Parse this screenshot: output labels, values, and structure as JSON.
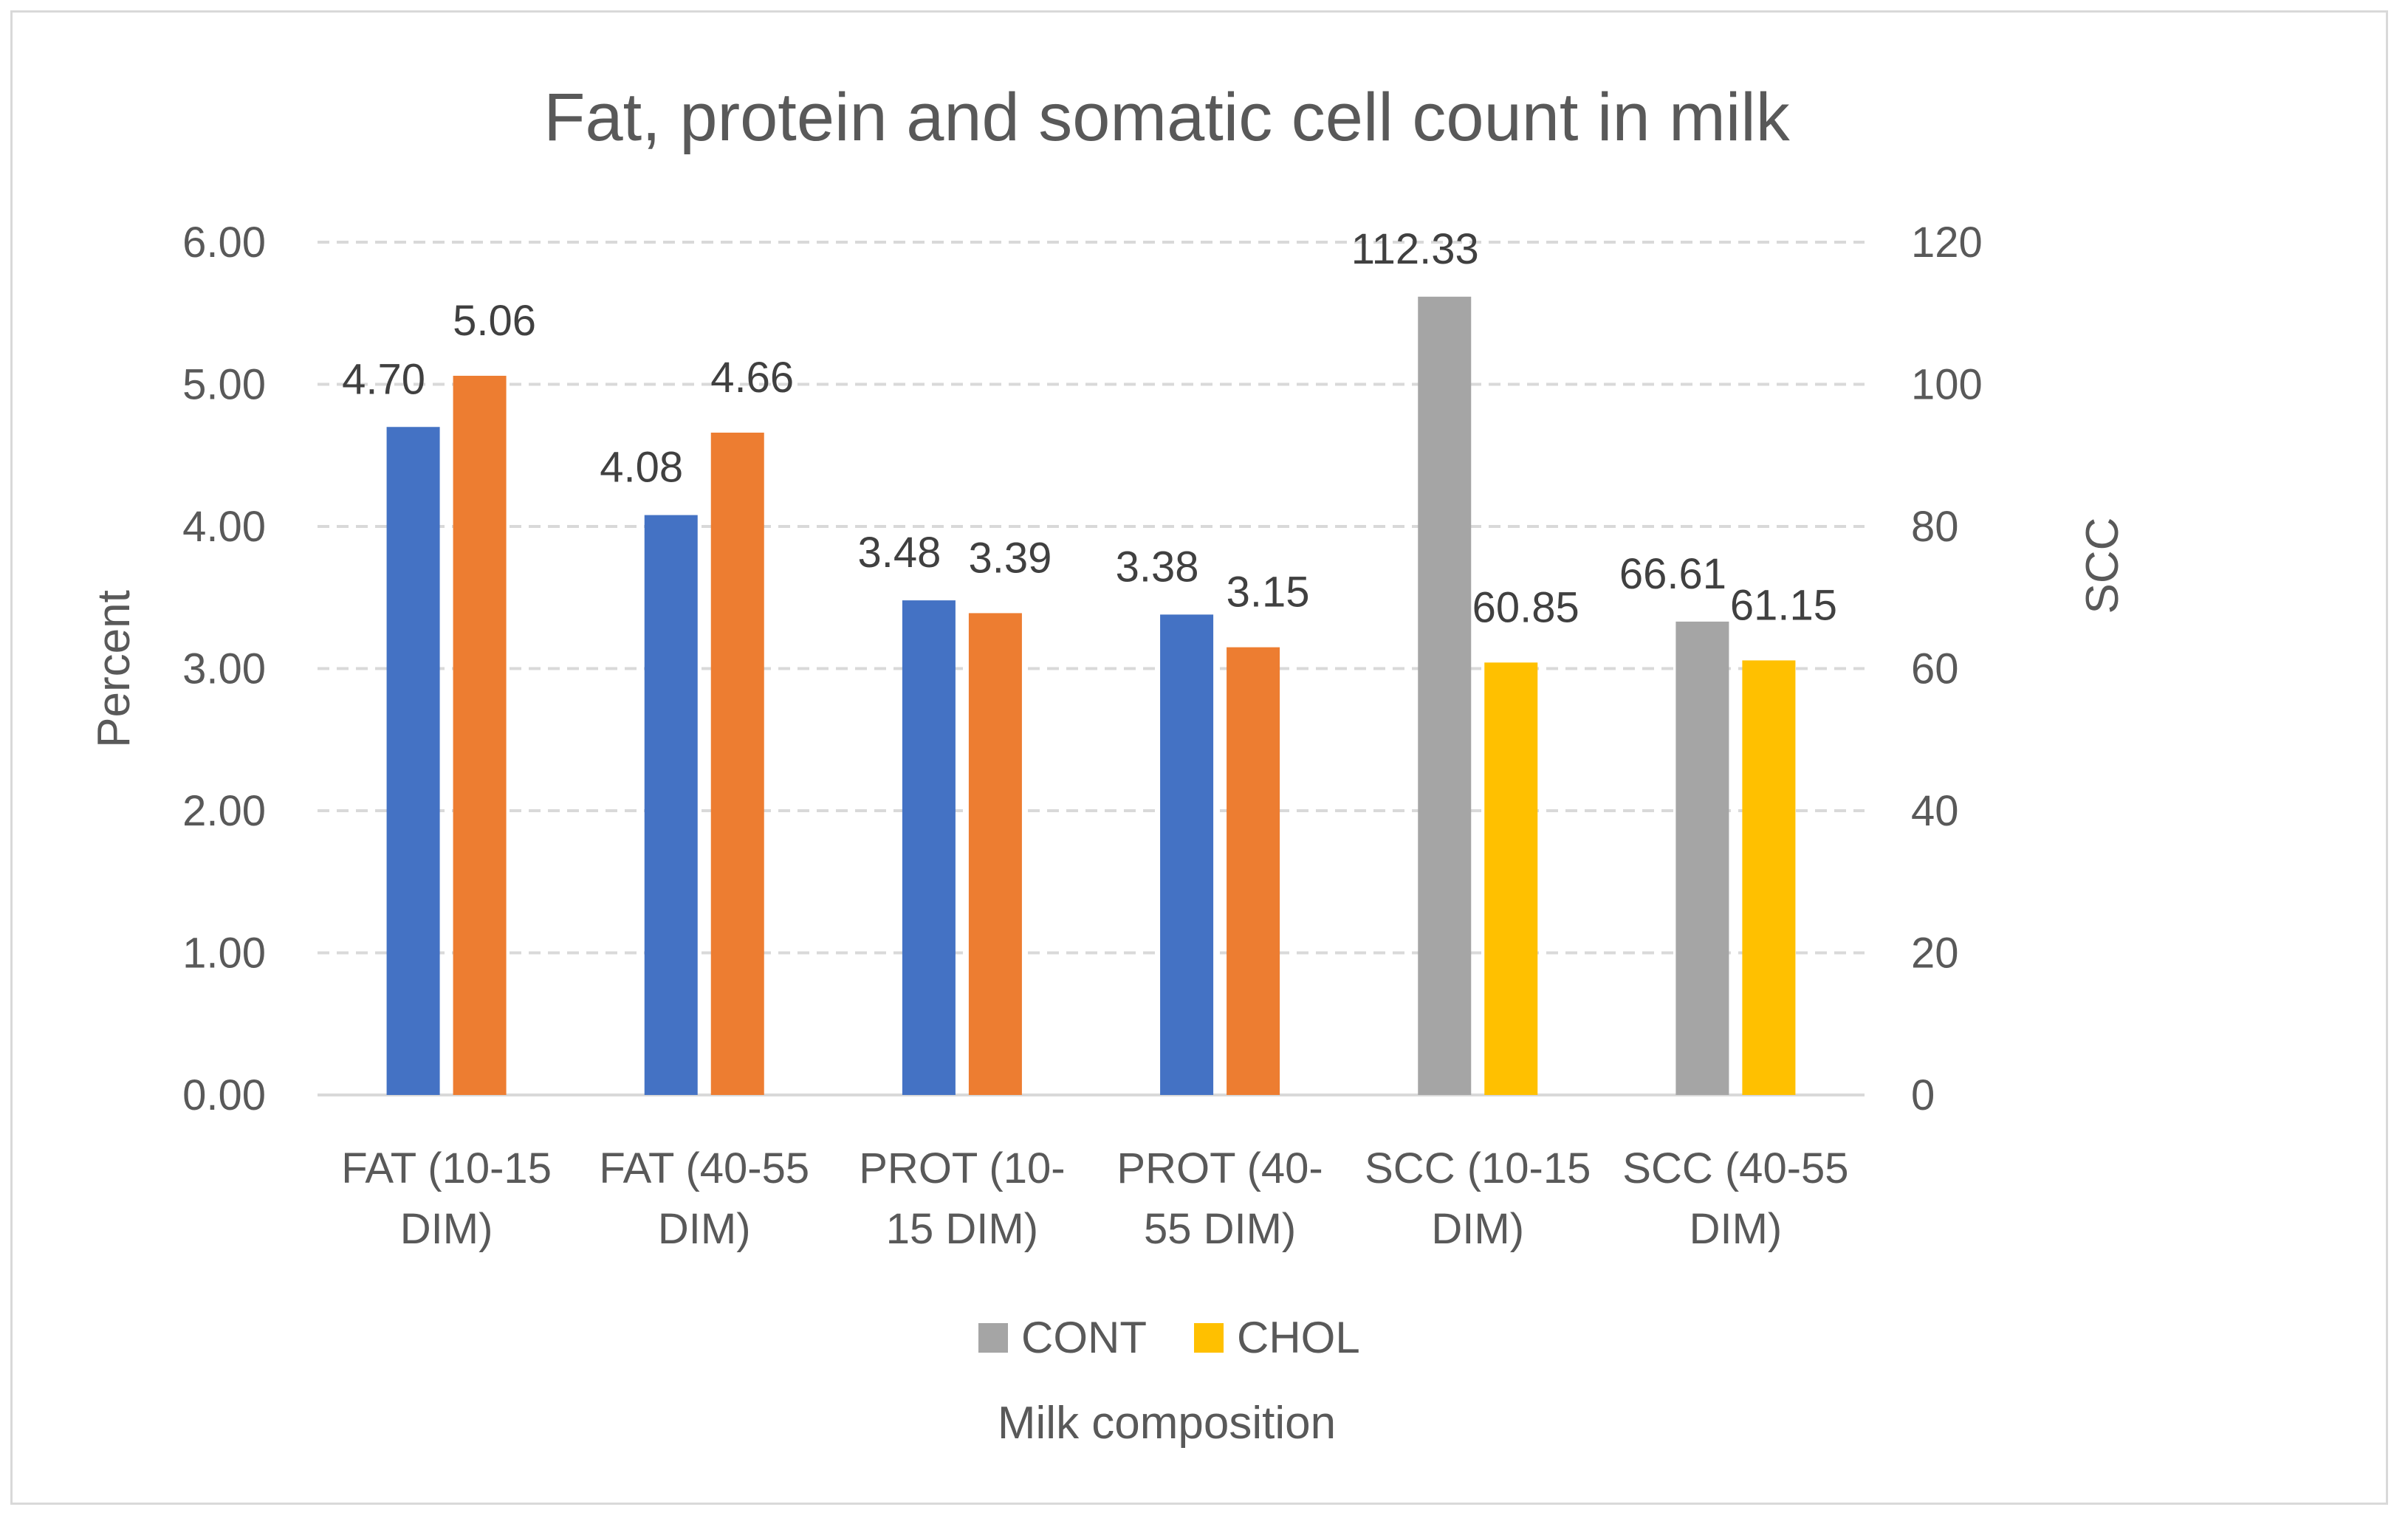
{
  "chart_data": {
    "type": "bar",
    "title": "Fat, protein and somatic cell count in milk",
    "xlabel": "Milk composition",
    "ylabel": "Percent",
    "y2label": "SCC",
    "ylim": [
      0,
      6
    ],
    "y2lim": [
      0,
      120
    ],
    "yticks": [
      "0.00",
      "1.00",
      "2.00",
      "3.00",
      "4.00",
      "5.00",
      "6.00"
    ],
    "y2ticks": [
      "0",
      "20",
      "40",
      "60",
      "80",
      "100",
      "120"
    ],
    "grid": true,
    "categories": [
      [
        "FAT (10-15",
        "DIM)"
      ],
      [
        "FAT (40-55",
        "DIM)"
      ],
      [
        "PROT (10-",
        "15 DIM)"
      ],
      [
        "PROT (40-",
        "55 DIM)"
      ],
      [
        "SCC (10-15",
        "DIM)"
      ],
      [
        "SCC (40-55",
        "DIM)"
      ]
    ],
    "groups": [
      {
        "axis": "left",
        "cont": 4.7,
        "chol": 5.06,
        "cont_label": "4.70",
        "chol_label": "5.06",
        "cont_color": "#4472c4",
        "chol_color": "#ed7d31"
      },
      {
        "axis": "left",
        "cont": 4.08,
        "chol": 4.66,
        "cont_label": "4.08",
        "chol_label": "4.66",
        "cont_color": "#4472c4",
        "chol_color": "#ed7d31"
      },
      {
        "axis": "left",
        "cont": 3.48,
        "chol": 3.39,
        "cont_label": "3.48",
        "chol_label": "3.39",
        "cont_color": "#4472c4",
        "chol_color": "#ed7d31"
      },
      {
        "axis": "left",
        "cont": 3.38,
        "chol": 3.15,
        "cont_label": "3.38",
        "chol_label": "3.15",
        "cont_color": "#4472c4",
        "chol_color": "#ed7d31"
      },
      {
        "axis": "right",
        "cont": 112.33,
        "chol": 60.85,
        "cont_label": "112.33",
        "chol_label": "60.85",
        "cont_color": "#a5a5a5",
        "chol_color": "#ffc000"
      },
      {
        "axis": "right",
        "cont": 66.61,
        "chol": 61.15,
        "cont_label": "66.61",
        "chol_label": "61.15",
        "cont_color": "#a5a5a5",
        "chol_color": "#ffc000"
      }
    ],
    "legend": [
      {
        "name": "CONT",
        "color": "#a5a5a5"
      },
      {
        "name": "CHOL",
        "color": "#ffc000"
      }
    ],
    "legend_position": "bottom"
  }
}
